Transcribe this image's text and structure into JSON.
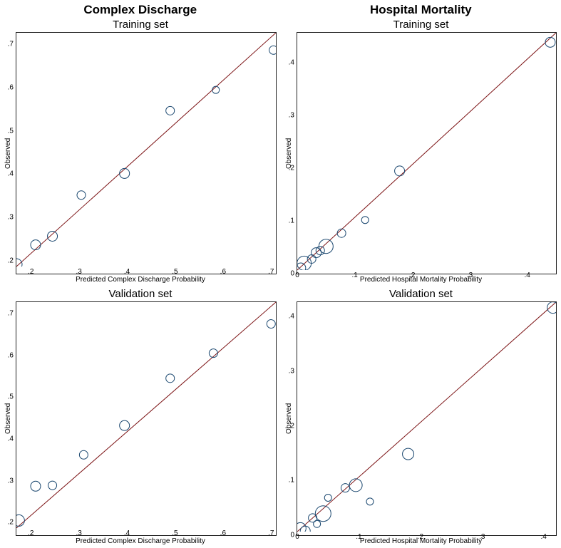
{
  "columns": [
    {
      "title": "Complex Discharge"
    },
    {
      "title": "Hospital Mortality"
    }
  ],
  "panels": {
    "cd_train": {
      "title": "Training set",
      "xlabel": "Predicted Complex Discharge Probability",
      "ylabel": "Observed",
      "xlim": [
        0.17,
        0.71
      ],
      "ylim": [
        0.17,
        0.71
      ],
      "xticks": [
        0.2,
        0.3,
        0.4,
        0.5,
        0.6,
        0.7
      ],
      "yticks": [
        0.2,
        0.3,
        0.4,
        0.5,
        0.6,
        0.7
      ],
      "xtick_labels": [
        ".2",
        ".3",
        ".4",
        ".5",
        ".6",
        ".7"
      ],
      "ytick_labels": [
        ".2",
        ".3",
        ".4",
        ".5",
        ".6",
        ".7"
      ],
      "line_color": "#7b1113",
      "line": [
        [
          0.17,
          0.17
        ],
        [
          0.71,
          0.71
        ]
      ],
      "marker_stroke": "#1a476f",
      "marker_fill": "none",
      "points": [
        {
          "x": 0.17,
          "y": 0.175,
          "r": 8
        },
        {
          "x": 0.21,
          "y": 0.22,
          "r": 7
        },
        {
          "x": 0.245,
          "y": 0.24,
          "r": 7
        },
        {
          "x": 0.305,
          "y": 0.335,
          "r": 6
        },
        {
          "x": 0.395,
          "y": 0.385,
          "r": 7
        },
        {
          "x": 0.49,
          "y": 0.53,
          "r": 6
        },
        {
          "x": 0.585,
          "y": 0.578,
          "r": 5
        },
        {
          "x": 0.705,
          "y": 0.67,
          "r": 6
        }
      ]
    },
    "hm_train": {
      "title": "Training set",
      "xlabel": "Predicted Hospital Mortality Probability",
      "ylabel": "Observed",
      "xlim": [
        0.0,
        0.45
      ],
      "ylim": [
        0.0,
        0.45
      ],
      "xticks": [
        0,
        0.1,
        0.2,
        0.3,
        0.4
      ],
      "yticks": [
        0,
        0.1,
        0.2,
        0.3,
        0.4
      ],
      "xtick_labels": [
        "0",
        ".1",
        ".2",
        ".3",
        ".4"
      ],
      "ytick_labels": [
        "0",
        ".1",
        ".2",
        ".3",
        ".4"
      ],
      "line_color": "#7b1113",
      "line": [
        [
          0.0,
          0.0
        ],
        [
          0.45,
          0.45
        ]
      ],
      "marker_stroke": "#1a476f",
      "marker_fill": "none",
      "points": [
        {
          "x": 0.006,
          "y": 0.004,
          "r": 7
        },
        {
          "x": 0.012,
          "y": 0.013,
          "r": 10
        },
        {
          "x": 0.025,
          "y": 0.021,
          "r": 6
        },
        {
          "x": 0.033,
          "y": 0.033,
          "r": 7
        },
        {
          "x": 0.04,
          "y": 0.037,
          "r": 6
        },
        {
          "x": 0.05,
          "y": 0.045,
          "r": 10
        },
        {
          "x": 0.077,
          "y": 0.07,
          "r": 6
        },
        {
          "x": 0.118,
          "y": 0.095,
          "r": 5
        },
        {
          "x": 0.178,
          "y": 0.188,
          "r": 7
        },
        {
          "x": 0.44,
          "y": 0.432,
          "r": 7
        }
      ]
    },
    "cd_valid": {
      "title": "Validation set",
      "xlabel": "Predicted Complex Discharge Probability",
      "ylabel": "Observed",
      "xlim": [
        0.17,
        0.71
      ],
      "ylim": [
        0.17,
        0.71
      ],
      "xticks": [
        0.2,
        0.3,
        0.4,
        0.5,
        0.6,
        0.7
      ],
      "yticks": [
        0.2,
        0.3,
        0.4,
        0.5,
        0.6,
        0.7
      ],
      "xtick_labels": [
        ".2",
        ".3",
        ".4",
        ".5",
        ".6",
        ".7"
      ],
      "ytick_labels": [
        ".2",
        ".3",
        ".4",
        ".5",
        ".6",
        ".7"
      ],
      "line_color": "#7b1113",
      "line": [
        [
          0.17,
          0.17
        ],
        [
          0.71,
          0.71
        ]
      ],
      "marker_stroke": "#1a476f",
      "marker_fill": "none",
      "points": [
        {
          "x": 0.175,
          "y": 0.188,
          "r": 8
        },
        {
          "x": 0.21,
          "y": 0.27,
          "r": 7
        },
        {
          "x": 0.245,
          "y": 0.272,
          "r": 6
        },
        {
          "x": 0.31,
          "y": 0.345,
          "r": 6
        },
        {
          "x": 0.395,
          "y": 0.415,
          "r": 7
        },
        {
          "x": 0.49,
          "y": 0.528,
          "r": 6
        },
        {
          "x": 0.58,
          "y": 0.588,
          "r": 6
        },
        {
          "x": 0.7,
          "y": 0.658,
          "r": 6
        }
      ]
    },
    "hm_valid": {
      "title": "Validation set",
      "xlabel": "Predicted Hospital Mortality Probability",
      "ylabel": "Observed",
      "xlim": [
        0.0,
        0.42
      ],
      "ylim": [
        0.0,
        0.42
      ],
      "xticks": [
        0,
        0.1,
        0.2,
        0.3,
        0.4
      ],
      "yticks": [
        0,
        0.1,
        0.2,
        0.3,
        0.4
      ],
      "xtick_labels": [
        "0",
        ".1",
        ".2",
        ".3",
        ".4"
      ],
      "ytick_labels": [
        "0",
        ".1",
        ".2",
        ".3",
        ".4"
      ],
      "line_color": "#7b1113",
      "line": [
        [
          0.0,
          0.0
        ],
        [
          0.42,
          0.42
        ]
      ],
      "marker_stroke": "#1a476f",
      "marker_fill": "none",
      "points": [
        {
          "x": 0.005,
          "y": 0.006,
          "r": 8
        },
        {
          "x": 0.013,
          "y": 0.001,
          "r": 7
        },
        {
          "x": 0.025,
          "y": 0.025,
          "r": 6
        },
        {
          "x": 0.032,
          "y": 0.014,
          "r": 5
        },
        {
          "x": 0.042,
          "y": 0.033,
          "r": 11
        },
        {
          "x": 0.05,
          "y": 0.062,
          "r": 5
        },
        {
          "x": 0.078,
          "y": 0.08,
          "r": 6
        },
        {
          "x": 0.095,
          "y": 0.085,
          "r": 9
        },
        {
          "x": 0.118,
          "y": 0.055,
          "r": 5
        },
        {
          "x": 0.18,
          "y": 0.142,
          "r": 8
        },
        {
          "x": 0.415,
          "y": 0.41,
          "r": 8
        }
      ]
    }
  },
  "style": {
    "plot_bg": "#ffffff",
    "axis_color": "#000000",
    "tick_fontsize": 10,
    "label_fontsize": 10,
    "title_fontsize": 15,
    "col_title_fontsize": 17,
    "col_title_weight": "bold",
    "marker_stroke_width": 1
  }
}
